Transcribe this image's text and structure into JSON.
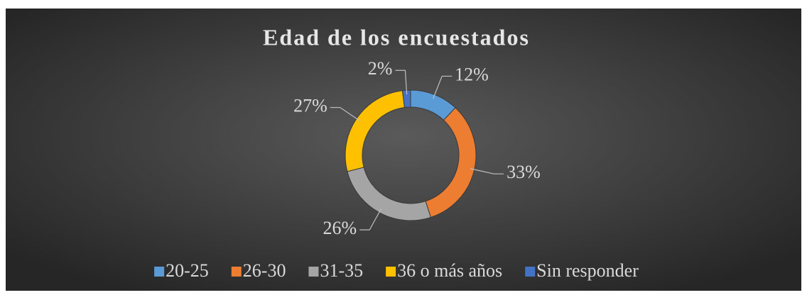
{
  "chart_data": {
    "type": "donut",
    "title": "Edad de los encuestados",
    "categories": [
      "20-25",
      "26-30",
      "31-35",
      "36 o más años",
      "Sin responder"
    ],
    "values": [
      12,
      33,
      26,
      27,
      2
    ],
    "value_labels": [
      "12%",
      "33%",
      "26%",
      "27%",
      "2%"
    ],
    "colors": [
      "#5b9bd5",
      "#ed7d31",
      "#a5a5a5",
      "#ffc000",
      "#4472c4"
    ],
    "legend": "bottom"
  }
}
